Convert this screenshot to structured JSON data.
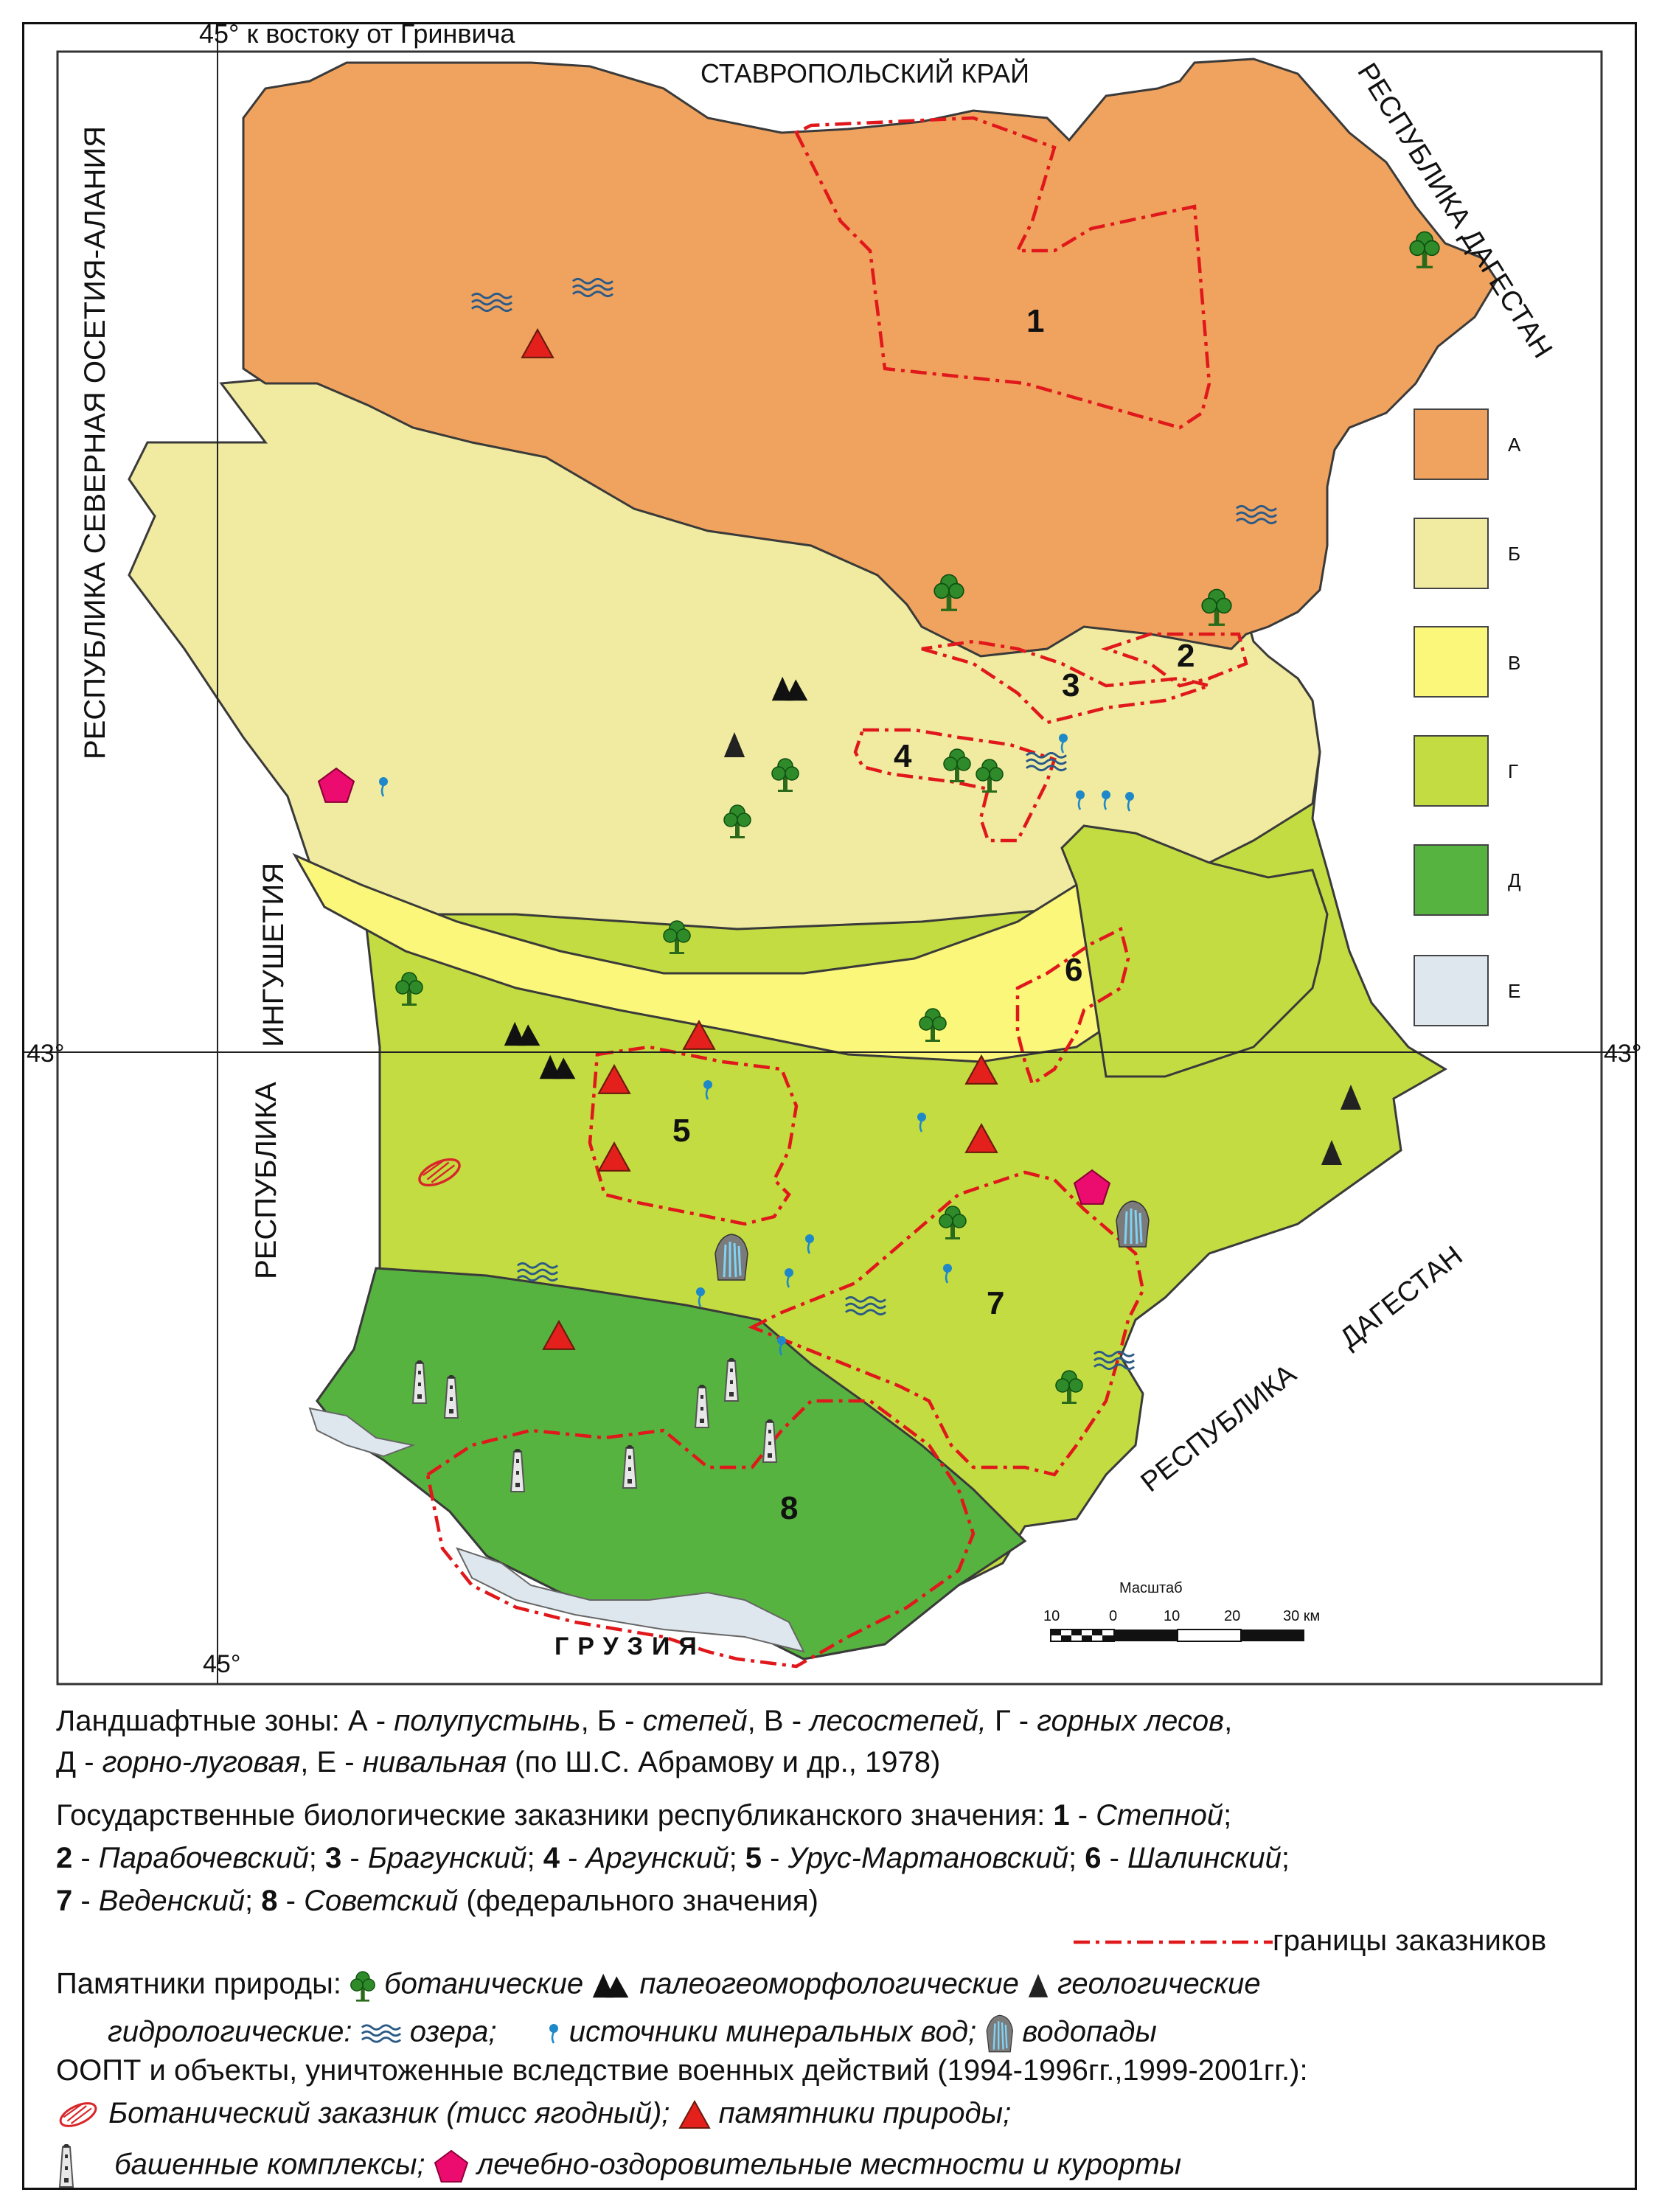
{
  "meridian_label": "45° к востоку от Гринвича",
  "lat_label_left": "43°",
  "lat_label_right": "43°",
  "lon_label_bottom": "45°",
  "neighbors": {
    "stavropol": "СТАВРОПОЛЬСКИЙ КРАЙ",
    "dagestan_top": "РЕСПУБЛИКА ДАГЕСТАН",
    "north_ossetia": "РЕСПУБЛИКА СЕВЕРНАЯ ОСЕТИЯ-АЛАНИЯ",
    "ingushetia_1": "ИНГУШЕТИЯ",
    "ingushetia_2": "РЕСПУБЛИКА",
    "dagestan_bottom_1": "ДАГЕСТАН",
    "dagestan_bottom_2": "РЕСПУБЛИКА",
    "georgia": "ГРУЗИЯ"
  },
  "reserve_numbers": [
    "1",
    "2",
    "3",
    "4",
    "5",
    "6",
    "7",
    "8"
  ],
  "zone_legend": [
    {
      "letter": "А",
      "color": "#f0a35e"
    },
    {
      "letter": "Б",
      "color": "#f0eba0"
    },
    {
      "letter": "В",
      "color": "#fbf77a"
    },
    {
      "letter": "Г",
      "color": "#c3dc41"
    },
    {
      "letter": "Д",
      "color": "#57b33f"
    },
    {
      "letter": "Е",
      "color": "#dfe7ee"
    }
  ],
  "scale": {
    "title": "Масштаб",
    "ticks": [
      "10",
      "0",
      "10",
      "20",
      "30 км"
    ]
  },
  "legend": {
    "zones_prefix": "Ландшафтные зоны: А - ",
    "zone_a": "полупустынь",
    "sep_b": ",  Б - ",
    "zone_b": "степей",
    "sep_v": ",  В - ",
    "zone_v": "лесостепей,",
    "sep_g": " Г - ",
    "zone_g": "горных лесов",
    "comma1": ",",
    "zone_d_prefix": "Д - ",
    "zone_d": "горно-луговая",
    "sep_e": ", Е - ",
    "zone_e": "нивальная",
    "zones_source": "  (по Ш.С. Абрамову и др., 1978)",
    "reserves_intro": "Государственные биологические заказники республиканского значения:  ",
    "r1_num": "1",
    "r1_name": "Степной",
    "r2_num": "2",
    "r2_name": "Парабочевский",
    "r3_num": "3",
    "r3_name": "Брагунский",
    "r4_num": "4",
    "r4_name": "Аргунский",
    "r5_num": "5",
    "r5_name": "Урус-Мартановский",
    "r6_num": "6",
    "r6_name": "Шалинский",
    "r7_num": "7",
    "r7_name": "Веденский",
    "r8_num": "8",
    "r8_name": "Советский",
    "r8_note": " (федерального значения)",
    "border_label": "границы заказников",
    "monuments_prefix": "Памятники природы: ",
    "botanical": "ботанические",
    "paleo": "палеогеоморфологические",
    "geological": "геологические",
    "hydro_prefix": "гидрологические:",
    "lakes": "озера;",
    "springs": "источники минеральных вод;",
    "waterfalls": "водопады",
    "destroyed": "ООПТ и объекты, уничтоженные вследствие военных действий (1994-1996гг.,1999-2001гг.):",
    "yew": "Ботанический заказник (тисс ягодный);",
    "monuments_destroyed": "памятники природы;",
    "towers": "башенные комплексы;",
    "resorts": "лечебно-оздоровительные местности и курорты"
  }
}
